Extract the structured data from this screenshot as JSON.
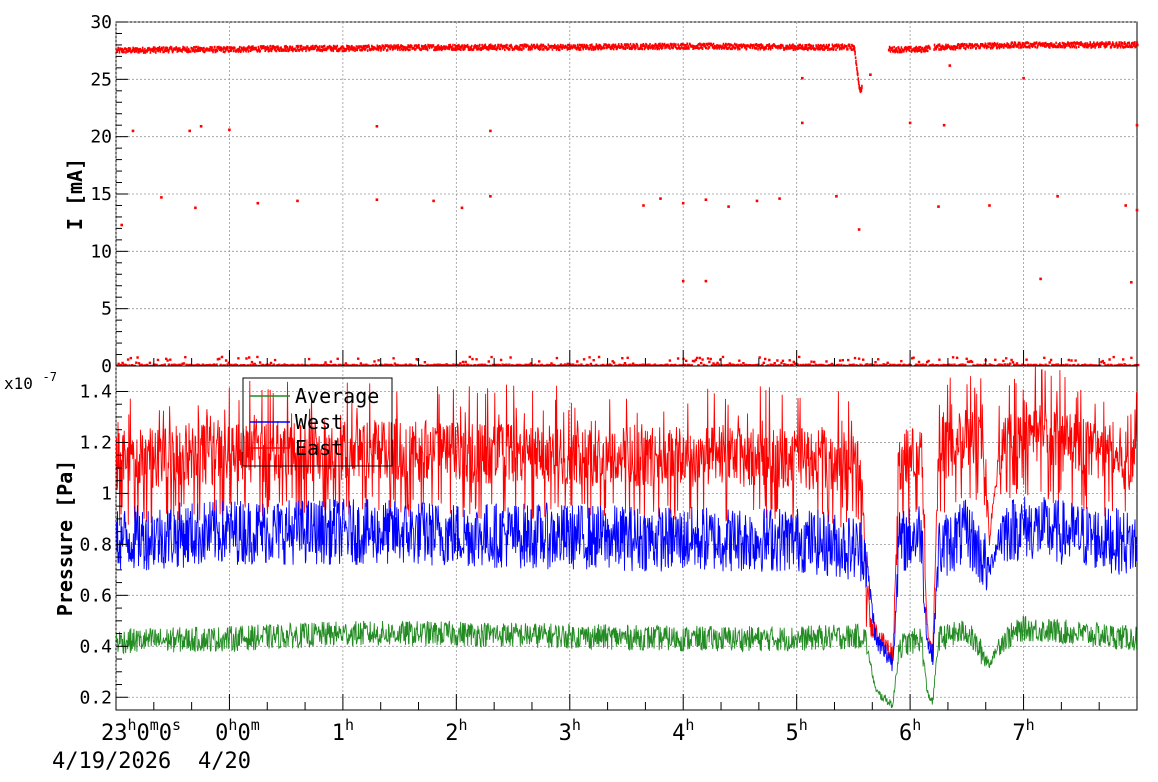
{
  "chart_data": [
    {
      "type": "scatter",
      "ylabel": "I [mA]",
      "ylim": [
        0,
        30
      ],
      "yticks": [
        0,
        5,
        10,
        15,
        20,
        25,
        30
      ],
      "ytick_labels": [
        "0",
        "5",
        "10",
        "15",
        "20",
        "25",
        "30"
      ],
      "xlim_hours": [
        -1,
        8
      ],
      "grid": true,
      "series": [
        {
          "color": "#ff0000",
          "main_band": [
            [
              -1.0,
              27.5
            ],
            [
              -0.5,
              27.6
            ],
            [
              0.0,
              27.6
            ],
            [
              0.5,
              27.7
            ],
            [
              1.0,
              27.7
            ],
            [
              2.0,
              27.8
            ],
            [
              3.0,
              27.8
            ],
            [
              4.0,
              27.9
            ],
            [
              5.0,
              27.8
            ],
            [
              5.5,
              27.8
            ],
            [
              5.55,
              24.0
            ],
            [
              5.8,
              27.6
            ],
            [
              6.1,
              27.6
            ],
            [
              6.2,
              27.8
            ],
            [
              7.0,
              28.0
            ],
            [
              8.0,
              28.0
            ]
          ],
          "outliers": [
            [
              -0.85,
              20.5
            ],
            [
              -0.35,
              20.5
            ],
            [
              -0.25,
              20.9
            ],
            [
              0.0,
              20.6
            ],
            [
              1.3,
              20.9
            ],
            [
              2.3,
              20.5
            ],
            [
              5.05,
              21.2
            ],
            [
              6.0,
              21.2
            ],
            [
              6.3,
              21.0
            ],
            [
              8.0,
              21.0
            ],
            [
              -0.95,
              12.3
            ],
            [
              -0.6,
              14.7
            ],
            [
              -0.3,
              13.8
            ],
            [
              0.25,
              14.2
            ],
            [
              0.6,
              14.4
            ],
            [
              1.3,
              14.5
            ],
            [
              1.8,
              14.4
            ],
            [
              2.05,
              13.8
            ],
            [
              2.3,
              14.8
            ],
            [
              3.65,
              14.0
            ],
            [
              3.8,
              14.6
            ],
            [
              4.0,
              14.2
            ],
            [
              4.2,
              14.5
            ],
            [
              4.4,
              13.9
            ],
            [
              4.65,
              14.4
            ],
            [
              4.85,
              14.6
            ],
            [
              5.35,
              14.8
            ],
            [
              5.55,
              11.9
            ],
            [
              6.25,
              13.9
            ],
            [
              6.7,
              14.0
            ],
            [
              7.3,
              14.8
            ],
            [
              7.9,
              14.0
            ],
            [
              8.0,
              13.6
            ],
            [
              4.0,
              7.4
            ],
            [
              4.2,
              7.4
            ],
            [
              7.15,
              7.6
            ],
            [
              7.95,
              7.3
            ],
            [
              5.05,
              25.1
            ],
            [
              5.65,
              25.4
            ],
            [
              6.35,
              26.2
            ],
            [
              7.0,
              25.1
            ]
          ],
          "zero_band_hours": [
            -1,
            8
          ]
        }
      ]
    },
    {
      "type": "line",
      "ylabel": "Pressure [Pa]",
      "y_exponent": "x10",
      "y_exponent_power": "-7",
      "ylim": [
        0.15,
        1.5
      ],
      "yticks": [
        0.2,
        0.4,
        0.6,
        0.8,
        1.0,
        1.2,
        1.4
      ],
      "ytick_labels": [
        "0.2",
        "0.4",
        "0.6",
        "0.8",
        "1",
        "1.2",
        "1.4"
      ],
      "xlim_hours": [
        -1,
        8
      ],
      "grid": true,
      "legend_position": "top-left",
      "series": [
        {
          "name": "Average",
          "color": "#228b22",
          "points": [
            [
              -1.0,
              0.42
            ],
            [
              0.0,
              0.43
            ],
            [
              1.0,
              0.45
            ],
            [
              2.0,
              0.45
            ],
            [
              3.0,
              0.44
            ],
            [
              4.0,
              0.43
            ],
            [
              5.0,
              0.43
            ],
            [
              5.6,
              0.44
            ],
            [
              5.7,
              0.22
            ],
            [
              5.85,
              0.17
            ],
            [
              5.9,
              0.4
            ],
            [
              6.1,
              0.43
            ],
            [
              6.15,
              0.22
            ],
            [
              6.2,
              0.18
            ],
            [
              6.25,
              0.43
            ],
            [
              6.5,
              0.46
            ],
            [
              6.7,
              0.33
            ],
            [
              6.8,
              0.42
            ],
            [
              7.0,
              0.47
            ],
            [
              8.0,
              0.43
            ]
          ],
          "noise": 0.05
        },
        {
          "name": "West",
          "color": "#0000ff",
          "points": [
            [
              -1.0,
              0.82
            ],
            [
              0.0,
              0.85
            ],
            [
              1.0,
              0.85
            ],
            [
              2.0,
              0.84
            ],
            [
              3.0,
              0.83
            ],
            [
              4.0,
              0.82
            ],
            [
              5.0,
              0.82
            ],
            [
              5.6,
              0.78
            ],
            [
              5.7,
              0.42
            ],
            [
              5.85,
              0.34
            ],
            [
              5.9,
              0.8
            ],
            [
              6.1,
              0.85
            ],
            [
              6.15,
              0.42
            ],
            [
              6.2,
              0.36
            ],
            [
              6.25,
              0.78
            ],
            [
              6.5,
              0.85
            ],
            [
              6.7,
              0.7
            ],
            [
              6.8,
              0.85
            ],
            [
              7.0,
              0.87
            ],
            [
              8.0,
              0.8
            ]
          ],
          "noise": 0.13
        },
        {
          "name": "East",
          "color": "#ff0000",
          "points": [
            [
              -1.0,
              1.13
            ],
            [
              0.0,
              1.16
            ],
            [
              1.0,
              1.17
            ],
            [
              2.0,
              1.16
            ],
            [
              3.0,
              1.15
            ],
            [
              4.0,
              1.14
            ],
            [
              5.0,
              1.14
            ],
            [
              5.55,
              1.12
            ],
            [
              5.65,
              0.48
            ],
            [
              5.85,
              0.37
            ],
            [
              5.9,
              1.13
            ],
            [
              6.1,
              1.15
            ],
            [
              6.15,
              0.46
            ],
            [
              6.2,
              0.4
            ],
            [
              6.25,
              1.15
            ],
            [
              6.5,
              1.22
            ],
            [
              6.65,
              1.2
            ],
            [
              6.7,
              0.82
            ],
            [
              6.8,
              1.2
            ],
            [
              7.0,
              1.25
            ],
            [
              8.0,
              1.12
            ]
          ],
          "noise": 0.12
        }
      ]
    }
  ],
  "x_axis": {
    "tick_hours": [
      -1,
      0,
      1,
      2,
      3,
      4,
      5,
      6,
      7
    ],
    "labels": [
      {
        "hour": -1,
        "base": "23",
        "parts": [
          [
            "h",
            "0"
          ],
          [
            "m",
            "0"
          ],
          [
            "s",
            ""
          ]
        ]
      },
      {
        "hour": 0,
        "base": "0",
        "parts": [
          [
            "h",
            "0"
          ],
          [
            "m",
            ""
          ]
        ]
      },
      {
        "hour": 1,
        "base": "1",
        "parts": [
          [
            "h",
            ""
          ]
        ]
      },
      {
        "hour": 2,
        "base": "2",
        "parts": [
          [
            "h",
            ""
          ]
        ]
      },
      {
        "hour": 3,
        "base": "3",
        "parts": [
          [
            "h",
            ""
          ]
        ]
      },
      {
        "hour": 4,
        "base": "4",
        "parts": [
          [
            "h",
            ""
          ]
        ]
      },
      {
        "hour": 5,
        "base": "5",
        "parts": [
          [
            "h",
            ""
          ]
        ]
      },
      {
        "hour": 6,
        "base": "6",
        "parts": [
          [
            "h",
            ""
          ]
        ]
      },
      {
        "hour": 7,
        "base": "7",
        "parts": [
          [
            "h",
            ""
          ]
        ]
      }
    ],
    "date_primary": "4/19/2026",
    "date_secondary": "4/20"
  }
}
